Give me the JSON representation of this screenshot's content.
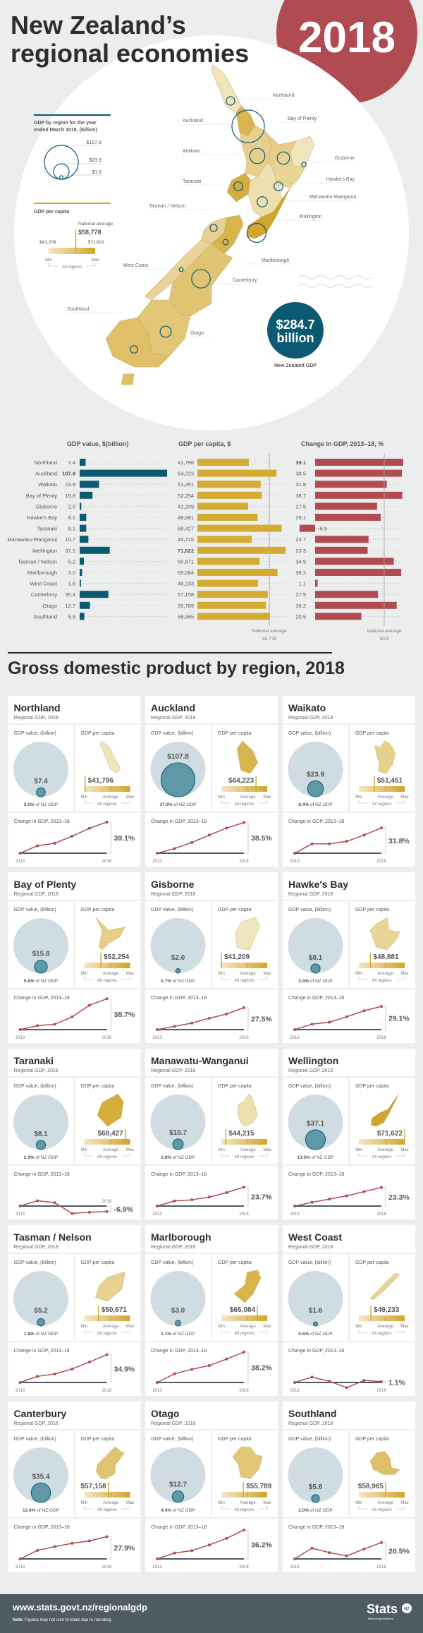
{
  "header": {
    "title_line1": "New Zealand’s",
    "title_line2": "regional economies",
    "year": "2018"
  },
  "legend": {
    "gdp_title_line1": "GDP by region for the year",
    "gdp_title_line2": "ended March 2018, (billion)",
    "gdp_scale": [
      "$107.8",
      "$23.9",
      "$1.6"
    ],
    "per_capita_title": "GDP per capita",
    "national_average_label": "National average",
    "national_average": "$58,778",
    "min_value": "$41,209",
    "max_value": "$71,622",
    "min_label": "Min",
    "max_label": "Max",
    "all_regions": "All regions"
  },
  "nz_total": {
    "value_line1": "$284.7",
    "value_line2": "billion",
    "label": "New Zealand GDP"
  },
  "table": {
    "col_gdp": "GDP value, $(billion)",
    "col_per_capita": "GDP per capita, $",
    "col_change": "Change in GDP, 2013–18, %",
    "national_average_label": "National average",
    "per_capita_avg": "58,778",
    "change_avg": "30.9"
  },
  "section_title": "Gross domestic product by region, 2018",
  "card_labels": {
    "subtitle": "Regional GDP, 2018",
    "gdp_value": "GDP value, (billion)",
    "per_capita": "GDP per capita",
    "share_suffix": " of NZ GDP",
    "min": "Min",
    "average": "Average",
    "max": "Max",
    "all_regions": "All regions",
    "change": "Change in GDP, 2013–18",
    "year_start": "2013",
    "year_end": "2018"
  },
  "chart_data": {
    "type": "bar",
    "categories": [
      "Northland",
      "Auckland",
      "Waikato",
      "Bay of Plenty",
      "Gisborne",
      "Hawke's Bay",
      "Taranaki",
      "Manawatu-Wanganui",
      "Wellington",
      "Tasman / Nelson",
      "Marlborough",
      "West Coast",
      "Canterbury",
      "Otago",
      "Southland"
    ],
    "series": [
      {
        "name": "GDP value, $(billion)",
        "values": [
          7.4,
          107.8,
          23.9,
          15.8,
          2.0,
          8.1,
          8.1,
          10.7,
          37.1,
          5.2,
          3.0,
          1.6,
          35.4,
          12.7,
          5.8
        ]
      },
      {
        "name": "GDP per capita, $",
        "values": [
          41796,
          64223,
          51451,
          52254,
          41209,
          48881,
          68427,
          44215,
          71622,
          50671,
          65084,
          49233,
          57158,
          55789,
          58965
        ]
      },
      {
        "name": "Change in GDP, 2013–18, %",
        "values": [
          39.1,
          38.5,
          31.8,
          38.7,
          27.5,
          29.1,
          -6.9,
          23.7,
          23.3,
          34.9,
          38.2,
          1.1,
          27.9,
          36.2,
          20.5
        ]
      }
    ],
    "national_average_per_capita": 58778,
    "national_average_change": 30.9,
    "total_gdp_billion": 284.7,
    "line_x": [
      2013,
      2014,
      2015,
      2016,
      2017,
      2018
    ]
  },
  "regions": [
    {
      "name": "Northland",
      "gdp": "7.4",
      "gdp_label": "$7.4",
      "share": "2.6%",
      "per_capita": "41,796",
      "per_capita_label": "$41,796",
      "change": "39.1",
      "change_label": "39.1%",
      "change_series": [
        0,
        9.3,
        12.5,
        21.3,
        31.2,
        39.1
      ]
    },
    {
      "name": "Auckland",
      "gdp": "107.8",
      "gdp_label": "$107.8",
      "share": "37.9%",
      "per_capita": "64,223",
      "per_capita_label": "$64,223",
      "change": "38.5",
      "change_label": "38.5%",
      "change_series": [
        0,
        5.8,
        13.4,
        22.7,
        31.5,
        38.5
      ]
    },
    {
      "name": "Waikato",
      "gdp": "23.9",
      "gdp_label": "$23.9",
      "share": "8.4%",
      "per_capita": "51,451",
      "per_capita_label": "$51,451",
      "change": "31.8",
      "change_label": "31.8%",
      "change_series": [
        0,
        11.7,
        11.7,
        14.9,
        22.7,
        31.8
      ]
    },
    {
      "name": "Bay of Plenty",
      "gdp": "15.8",
      "gdp_label": "$15.8",
      "share": "5.6%",
      "per_capita": "52,254",
      "per_capita_label": "$52,254",
      "change": "38.7",
      "change_label": "38.7%",
      "change_series": [
        0,
        5.0,
        6.7,
        16.0,
        30.6,
        38.7
      ]
    },
    {
      "name": "Gisborne",
      "gdp": "2.0",
      "gdp_label": "$2.0",
      "share": "0.7%",
      "per_capita": "41,209",
      "per_capita_label": "$41,209",
      "change": "27.5",
      "change_label": "27.5%",
      "change_series": [
        0,
        4.1,
        8.2,
        14.3,
        19.6,
        27.5
      ]
    },
    {
      "name": "Hawke's Bay",
      "gdp": "8.1",
      "gdp_label": "$8.1",
      "share": "2.8%",
      "per_capita": "48,881",
      "per_capita_label": "$48,881",
      "change": "29.1",
      "change_label": "29.1%",
      "change_series": [
        0,
        6.9,
        9.3,
        16.1,
        23.7,
        29.1
      ]
    },
    {
      "name": "Taranaki",
      "gdp": "8.1",
      "gdp_label": "$8.1",
      "share": "2.9%",
      "per_capita": "68,427",
      "per_capita_label": "$68,427",
      "change": "-6.9",
      "change_label": "-6.9%",
      "change_series": [
        0,
        6.6,
        4.2,
        -9.3,
        -7.8,
        -6.9
      ]
    },
    {
      "name": "Manawatu-Wanganui",
      "gdp": "10.7",
      "gdp_label": "$10.7",
      "share": "3.8%",
      "per_capita": "44,215",
      "per_capita_label": "$44,215",
      "change": "23.7",
      "change_label": "23.7%",
      "change_series": [
        0,
        6.4,
        7.8,
        11.3,
        16.8,
        23.7
      ]
    },
    {
      "name": "Wellington",
      "gdp": "37.1",
      "gdp_label": "$37.1",
      "share": "13.0%",
      "per_capita": "71,622",
      "per_capita_label": "$71,622",
      "change": "23.3",
      "change_label": "23.3%",
      "change_series": [
        0,
        4.7,
        8.7,
        12.8,
        18.1,
        23.3
      ]
    },
    {
      "name": "Tasman / Nelson",
      "gdp": "5.2",
      "gdp_label": "$5.2",
      "share": "1.8%",
      "per_capita": "50,671",
      "per_capita_label": "$50,671",
      "change": "34.9",
      "change_label": "34.9%",
      "change_series": [
        0,
        7.7,
        10.6,
        16.9,
        25.7,
        34.9
      ]
    },
    {
      "name": "Marlborough",
      "gdp": "3.0",
      "gdp_label": "$3.0",
      "share": "1.1%",
      "per_capita": "65,084",
      "per_capita_label": "$65,084",
      "change": "38.2",
      "change_label": "38.2%",
      "change_series": [
        0,
        10.9,
        16.5,
        21.2,
        29.4,
        38.2
      ]
    },
    {
      "name": "West Coast",
      "gdp": "1.6",
      "gdp_label": "$1.6",
      "share": "0.6%",
      "per_capita": "49,233",
      "per_capita_label": "$49,233",
      "change": "1.1",
      "change_label": "1.1%",
      "change_series": [
        0,
        6.8,
        1.5,
        -6.5,
        2.6,
        1.1
      ]
    },
    {
      "name": "Canterbury",
      "gdp": "35.4",
      "gdp_label": "$35.4",
      "share": "12.4%",
      "per_capita": "57,158",
      "per_capita_label": "$57,158",
      "change": "27.9",
      "change_label": "27.9%",
      "change_series": [
        0,
        10.7,
        15.4,
        19.6,
        22.6,
        27.9
      ]
    },
    {
      "name": "Otago",
      "gdp": "12.7",
      "gdp_label": "$12.7",
      "share": "4.4%",
      "per_capita": "55,789",
      "per_capita_label": "$55,789",
      "change": "36.2",
      "change_label": "36.2%",
      "change_series": [
        0,
        7.4,
        10.4,
        17.5,
        25.8,
        36.2
      ]
    },
    {
      "name": "Southland",
      "gdp": "5.8",
      "gdp_label": "$5.8",
      "share": "2.0%",
      "per_capita": "58,965",
      "per_capita_label": "$58,965",
      "change": "20.5",
      "change_label": "20.5%",
      "change_series": [
        0,
        13.5,
        7.9,
        3.8,
        12.3,
        20.5
      ]
    }
  ],
  "footer": {
    "url": "www.stats.govt.nz/regionalgdp",
    "note_label": "Note:",
    "note": " Figures may not sum to totals due to rounding.",
    "logo": "Stats",
    "logo_badge": "NZ",
    "logo_sub": "Tatauranga Aotearoa"
  },
  "colors": {
    "background": "#eceeed",
    "gdp_blue": "#0b5a72",
    "per_capita_gold": "#d4ab32",
    "change_red": "#b04c51",
    "footer": "#4e5b62"
  }
}
